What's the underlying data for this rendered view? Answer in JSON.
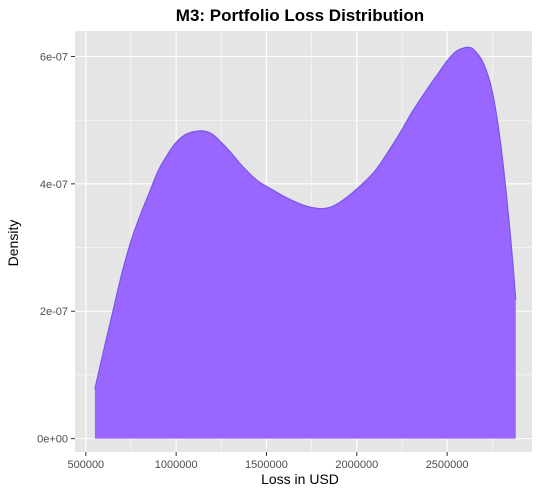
{
  "chart_data": {
    "type": "area",
    "title": "M3: Portfolio Loss Distribution",
    "xlabel": "Loss in USD",
    "ylabel": "Density",
    "xlim": [
      440000,
      2970000
    ],
    "ylim": [
      -2.1e-08,
      6.4e-07
    ],
    "x_ticks": [
      500000,
      1000000,
      1500000,
      2000000,
      2500000
    ],
    "x_tick_labels": [
      "500000",
      "1000000",
      "1500000",
      "2000000",
      "2500000"
    ],
    "y_ticks": [
      0,
      2e-07,
      4e-07,
      6e-07
    ],
    "y_tick_labels": [
      "0e+00",
      "2e-07",
      "4e-07",
      "6e-07"
    ],
    "grid": true,
    "fill_color": "#9966ff",
    "line_color": "#7755ee",
    "panel_color": "#e5e5e5",
    "series": [
      {
        "x": [
          550000,
          600000,
          650000,
          700000,
          750000,
          800000,
          850000,
          900000,
          950000,
          1000000,
          1050000,
          1100000,
          1150000,
          1200000,
          1250000,
          1300000,
          1350000,
          1400000,
          1450000,
          1500000,
          1550000,
          1600000,
          1650000,
          1700000,
          1750000,
          1800000,
          1850000,
          1900000,
          1950000,
          2000000,
          2050000,
          2100000,
          2150000,
          2200000,
          2250000,
          2300000,
          2350000,
          2400000,
          2450000,
          2500000,
          2550000,
          2600000,
          2625000,
          2650000,
          2700000,
          2750000,
          2800000,
          2850000,
          2880000
        ],
        "y": [
          7.8e-08,
          1.4e-07,
          2e-07,
          2.6e-07,
          3.1e-07,
          3.5e-07,
          3.85e-07,
          4.2e-07,
          4.45e-07,
          4.65e-07,
          4.77e-07,
          4.82e-07,
          4.83e-07,
          4.78e-07,
          4.65e-07,
          4.5e-07,
          4.33e-07,
          4.18e-07,
          4.05e-07,
          3.96e-07,
          3.88e-07,
          3.8e-07,
          3.73e-07,
          3.67e-07,
          3.63e-07,
          3.61e-07,
          3.63e-07,
          3.7e-07,
          3.8e-07,
          3.92e-07,
          4.05e-07,
          4.2e-07,
          4.4e-07,
          4.62e-07,
          4.85e-07,
          5.1e-07,
          5.32e-07,
          5.53e-07,
          5.73e-07,
          5.93e-07,
          6.08e-07,
          6.14e-07,
          6.14e-07,
          6.1e-07,
          5.9e-07,
          5.45e-07,
          4.55e-07,
          3.2e-07,
          2.18e-07
        ]
      }
    ]
  }
}
